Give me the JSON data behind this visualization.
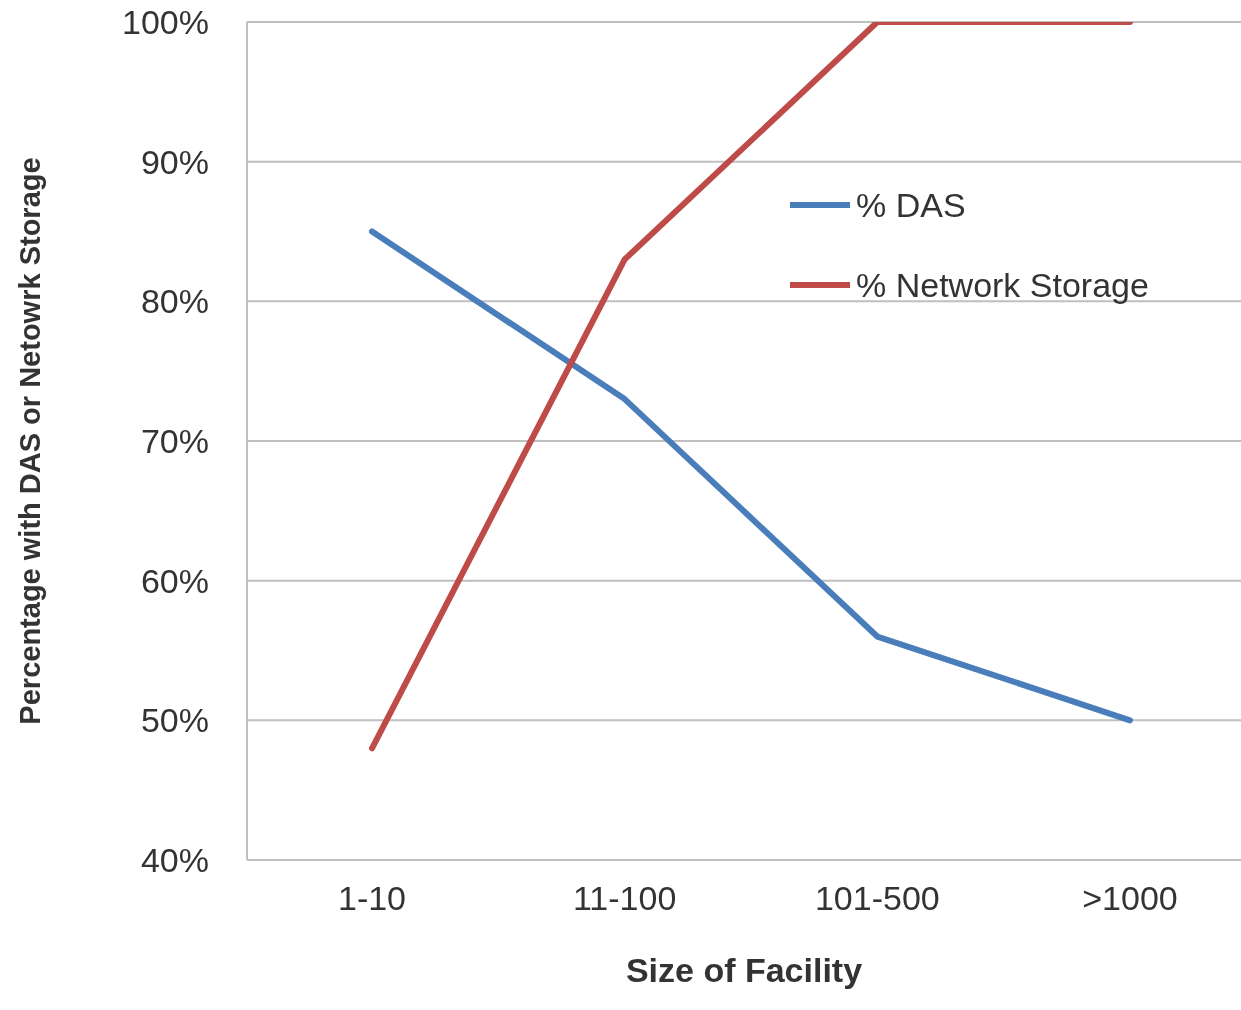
{
  "chart_data": {
    "type": "line",
    "xlabel": "Size of Facility",
    "ylabel": "Percentage with DAS or Netowrk Storage",
    "categories": [
      "1-10",
      "11-100",
      "101-500",
      ">1000"
    ],
    "series": [
      {
        "name": "% DAS",
        "color": "#4a7ebb",
        "values": [
          85,
          73,
          56,
          50
        ]
      },
      {
        "name": "% Network Storage",
        "color": "#be4b48",
        "values": [
          48,
          83,
          100,
          100
        ]
      }
    ],
    "ylim": [
      40,
      100
    ],
    "yticks": [
      {
        "value": 40,
        "label": "40%"
      },
      {
        "value": 50,
        "label": "50%"
      },
      {
        "value": 60,
        "label": "60%"
      },
      {
        "value": 70,
        "label": "70%"
      },
      {
        "value": 80,
        "label": "80%"
      },
      {
        "value": 90,
        "label": "90%"
      },
      {
        "value": 100,
        "label": "100%"
      }
    ],
    "grid": "y",
    "legend": "right",
    "marker": "none",
    "line_style": "solid"
  }
}
